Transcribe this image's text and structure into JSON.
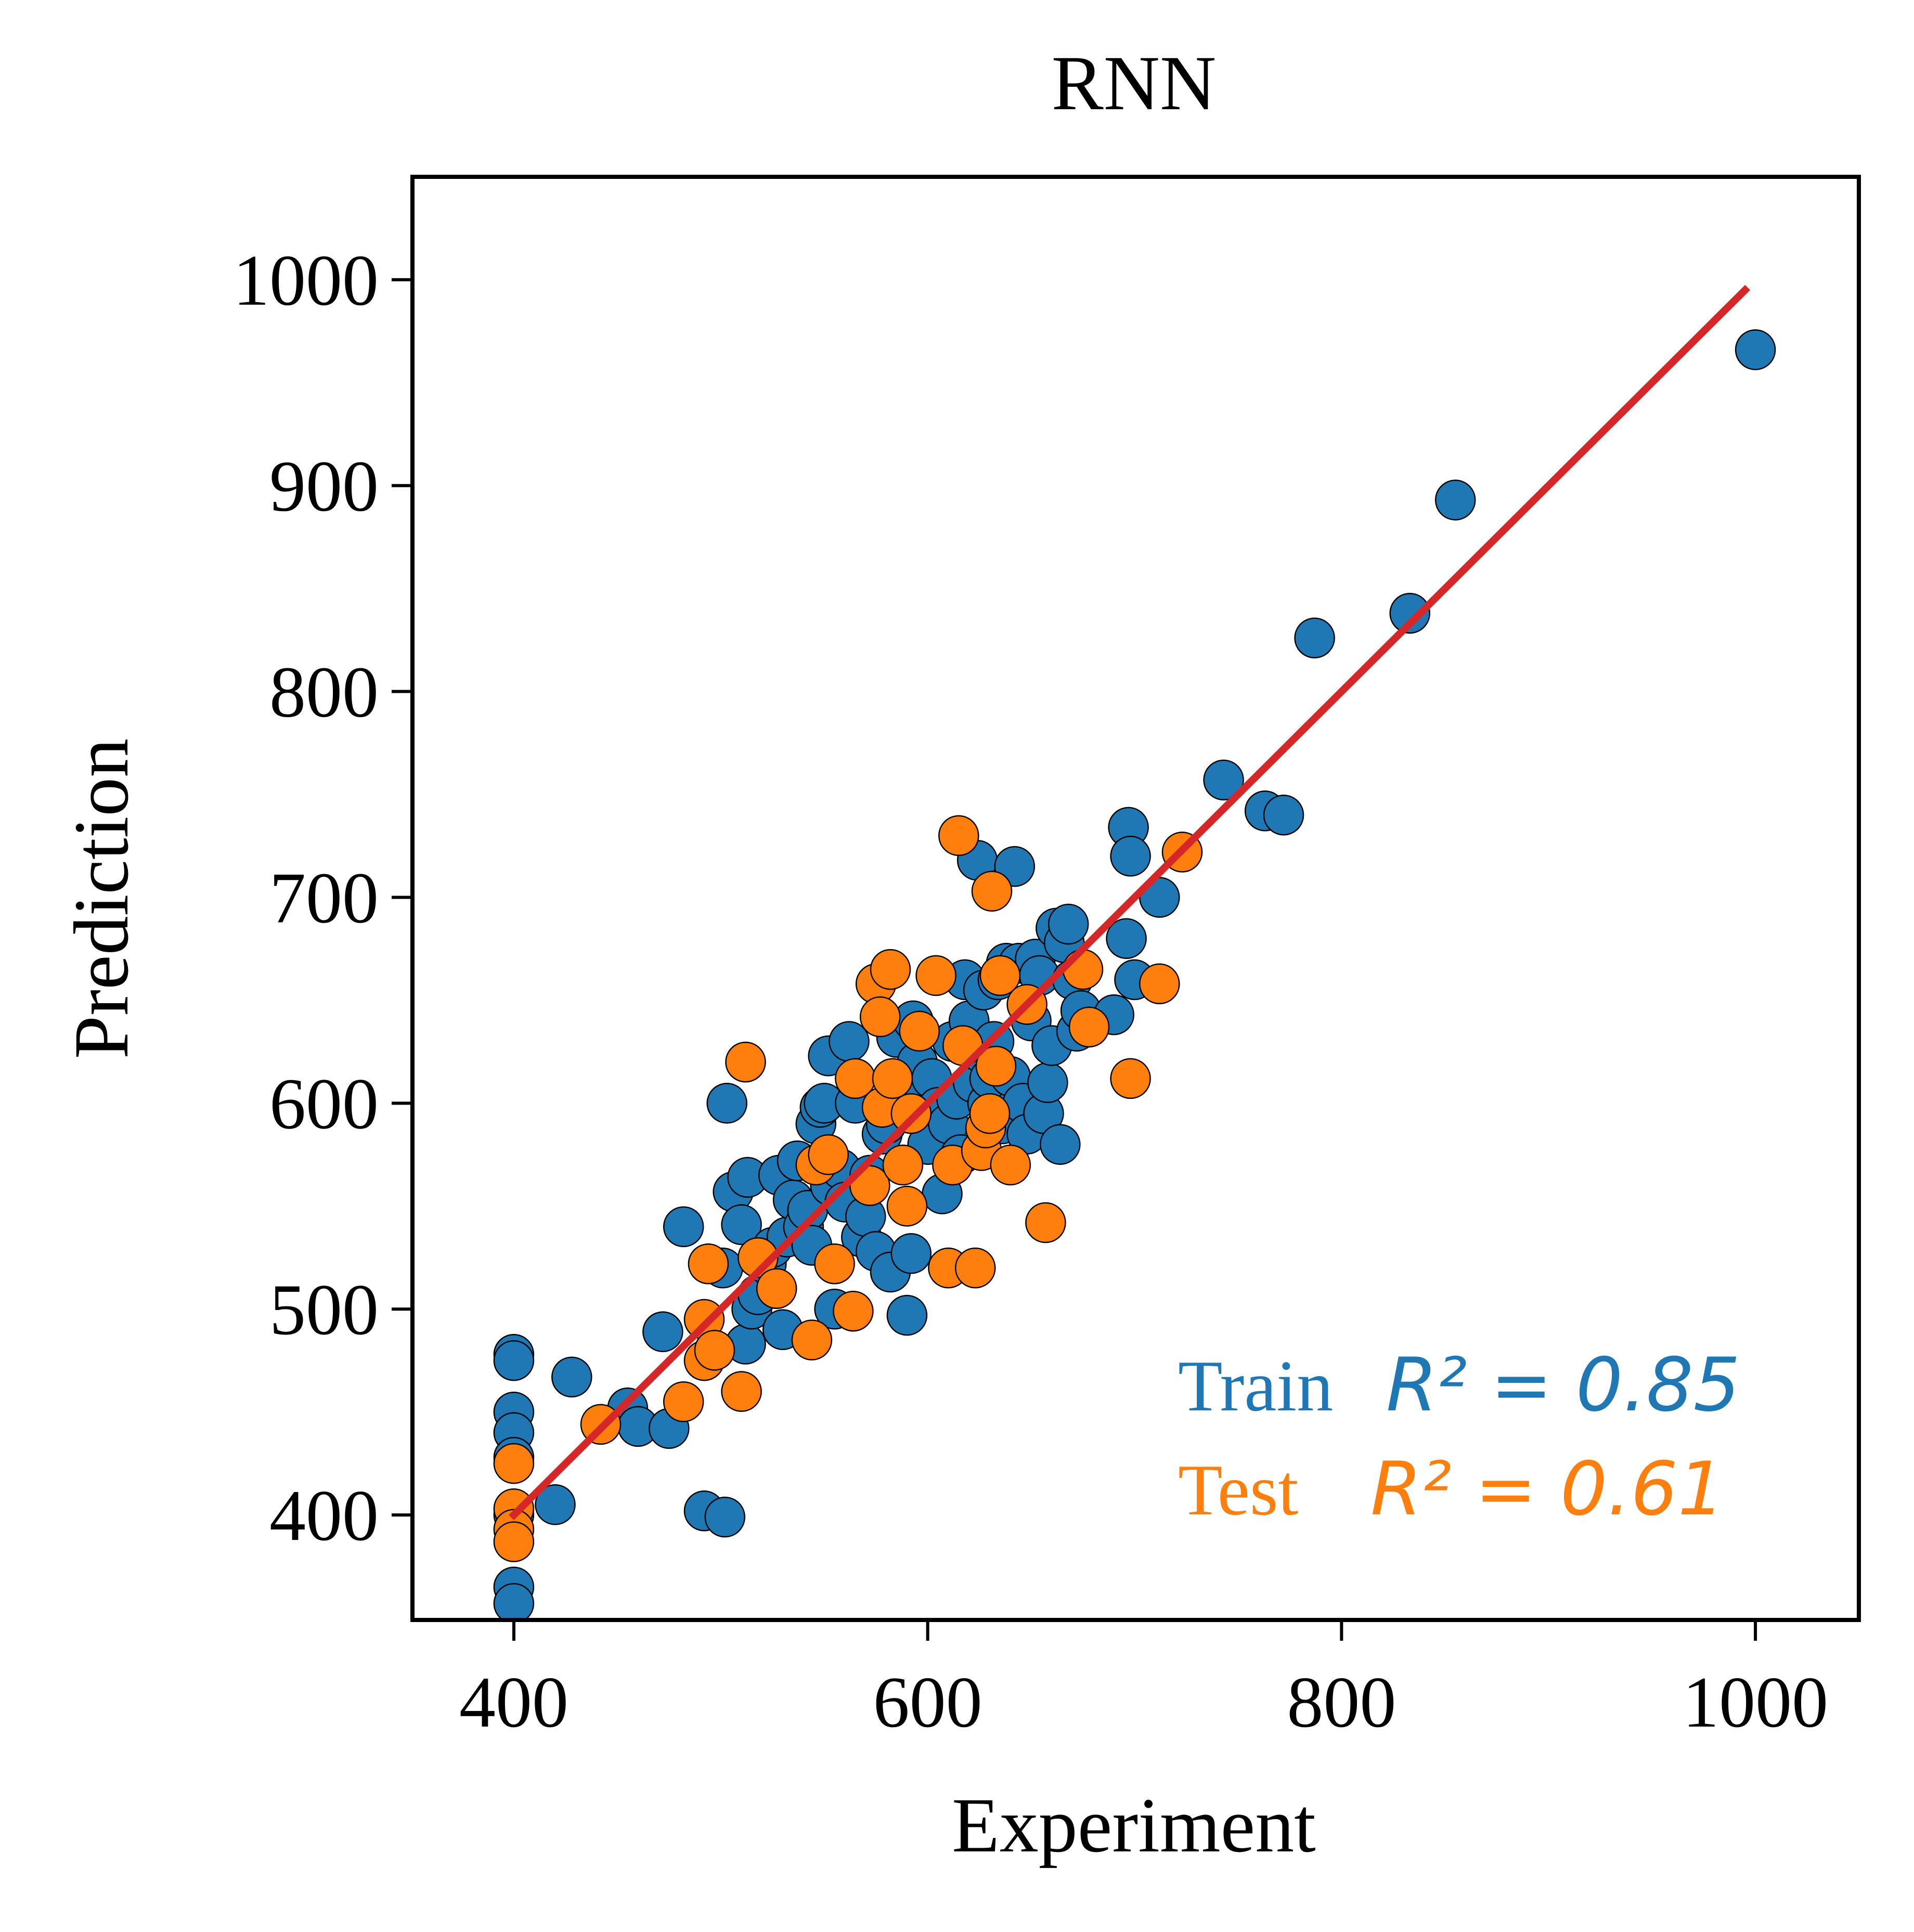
{
  "chart_data": {
    "type": "scatter",
    "title": "RNN",
    "xlabel": "Experiment",
    "ylabel": "Prediction",
    "xlim": [
      351,
      1050
    ],
    "ylim": [
      349,
      1050
    ],
    "xticks": [
      "400",
      "600",
      "800",
      "1000"
    ],
    "yticks": [
      "400",
      "500",
      "600",
      "700",
      "800",
      "900",
      "1000"
    ],
    "xtick_values": [
      400,
      600,
      800,
      1000
    ],
    "ytick_values": [
      400,
      500,
      600,
      700,
      800,
      900,
      1000
    ],
    "grid": false,
    "colors": {
      "train": "#1f77b4",
      "test": "#ff7f0e",
      "fit_line": "#d62728",
      "marker_edge": "#000000"
    },
    "fit_line": {
      "x": [
        400,
        995
      ],
      "y": [
        400,
        995
      ]
    },
    "annotations": {
      "train_label": "Train",
      "train_metric": "R² = 0.85",
      "test_label": "Test",
      "test_metric": "R² = 0.61"
    },
    "series": [
      {
        "key": "train",
        "points": [
          [
            400,
            478
          ],
          [
            400,
            475
          ],
          [
            400,
            450
          ],
          [
            400,
            440
          ],
          [
            400,
            428
          ],
          [
            400,
            400
          ],
          [
            400,
            365
          ],
          [
            400,
            357
          ],
          [
            420,
            405
          ],
          [
            428,
            467
          ],
          [
            455,
            452
          ],
          [
            460,
            443
          ],
          [
            475,
            442
          ],
          [
            472,
            489
          ],
          [
            482,
            540
          ],
          [
            492,
            402
          ],
          [
            502,
            399
          ],
          [
            501,
            520
          ],
          [
            503,
            600
          ],
          [
            506,
            557
          ],
          [
            510,
            541
          ],
          [
            512,
            483
          ],
          [
            513,
            564
          ],
          [
            515,
            500
          ],
          [
            518,
            507
          ],
          [
            522,
            522
          ],
          [
            525,
            530
          ],
          [
            528,
            565
          ],
          [
            530,
            490
          ],
          [
            532,
            535
          ],
          [
            535,
            553
          ],
          [
            537,
            572
          ],
          [
            540,
            540
          ],
          [
            542,
            548
          ],
          [
            544,
            531
          ],
          [
            546,
            590
          ],
          [
            548,
            598
          ],
          [
            550,
            600
          ],
          [
            552,
            623
          ],
          [
            553,
            560
          ],
          [
            555,
            500
          ],
          [
            558,
            568
          ],
          [
            560,
            552
          ],
          [
            562,
            630
          ],
          [
            565,
            600
          ],
          [
            568,
            535
          ],
          [
            570,
            545
          ],
          [
            572,
            565
          ],
          [
            575,
            528
          ],
          [
            578,
            585
          ],
          [
            580,
            590
          ],
          [
            582,
            518
          ],
          [
            585,
            632
          ],
          [
            588,
            600
          ],
          [
            590,
            497
          ],
          [
            592,
            527
          ],
          [
            593,
            640
          ],
          [
            595,
            620
          ],
          [
            598,
            605
          ],
          [
            600,
            580
          ],
          [
            602,
            612
          ],
          [
            605,
            598
          ],
          [
            607,
            556
          ],
          [
            610,
            590
          ],
          [
            612,
            630
          ],
          [
            614,
            602
          ],
          [
            616,
            575
          ],
          [
            618,
            660
          ],
          [
            620,
            640
          ],
          [
            622,
            610
          ],
          [
            624,
            718
          ],
          [
            625,
            625
          ],
          [
            627,
            655
          ],
          [
            629,
            600
          ],
          [
            630,
            612
          ],
          [
            632,
            630
          ],
          [
            634,
            660
          ],
          [
            636,
            590
          ],
          [
            638,
            668
          ],
          [
            640,
            613
          ],
          [
            642,
            715
          ],
          [
            644,
            668
          ],
          [
            646,
            600
          ],
          [
            648,
            585
          ],
          [
            650,
            640
          ],
          [
            652,
            670
          ],
          [
            654,
            662
          ],
          [
            656,
            595
          ],
          [
            658,
            610
          ],
          [
            660,
            628
          ],
          [
            662,
            685
          ],
          [
            664,
            580
          ],
          [
            666,
            678
          ],
          [
            668,
            687
          ],
          [
            670,
            660
          ],
          [
            672,
            635
          ],
          [
            674,
            645
          ],
          [
            690,
            643
          ],
          [
            696,
            680
          ],
          [
            697,
            734
          ],
          [
            698,
            720
          ],
          [
            700,
            660
          ],
          [
            712,
            700
          ],
          [
            743,
            757
          ],
          [
            763,
            742
          ],
          [
            772,
            740
          ],
          [
            787,
            826
          ],
          [
            833,
            838
          ],
          [
            855,
            893
          ],
          [
            1000,
            966
          ]
        ]
      },
      {
        "key": "test",
        "points": [
          [
            400,
            425
          ],
          [
            400,
            403
          ],
          [
            400,
            393
          ],
          [
            400,
            387
          ],
          [
            442,
            444
          ],
          [
            482,
            455
          ],
          [
            492,
            475
          ],
          [
            492,
            495
          ],
          [
            494,
            522
          ],
          [
            497,
            480
          ],
          [
            510,
            460
          ],
          [
            512,
            620
          ],
          [
            518,
            525
          ],
          [
            527,
            510
          ],
          [
            544,
            485
          ],
          [
            546,
            570
          ],
          [
            552,
            575
          ],
          [
            555,
            522
          ],
          [
            564,
            499
          ],
          [
            565,
            612
          ],
          [
            572,
            560
          ],
          [
            575,
            658
          ],
          [
            577,
            642
          ],
          [
            578,
            598
          ],
          [
            582,
            665
          ],
          [
            583,
            612
          ],
          [
            588,
            570
          ],
          [
            590,
            550
          ],
          [
            592,
            595
          ],
          [
            596,
            635
          ],
          [
            604,
            662
          ],
          [
            610,
            520
          ],
          [
            612,
            570
          ],
          [
            615,
            730
          ],
          [
            617,
            628
          ],
          [
            623,
            520
          ],
          [
            626,
            577
          ],
          [
            628,
            588
          ],
          [
            630,
            595
          ],
          [
            631,
            703
          ],
          [
            633,
            618
          ],
          [
            635,
            662
          ],
          [
            640,
            570
          ],
          [
            648,
            648
          ],
          [
            657,
            542
          ],
          [
            675,
            665
          ],
          [
            678,
            637
          ],
          [
            698,
            612
          ],
          [
            712,
            658
          ],
          [
            723,
            722
          ]
        ]
      }
    ]
  }
}
